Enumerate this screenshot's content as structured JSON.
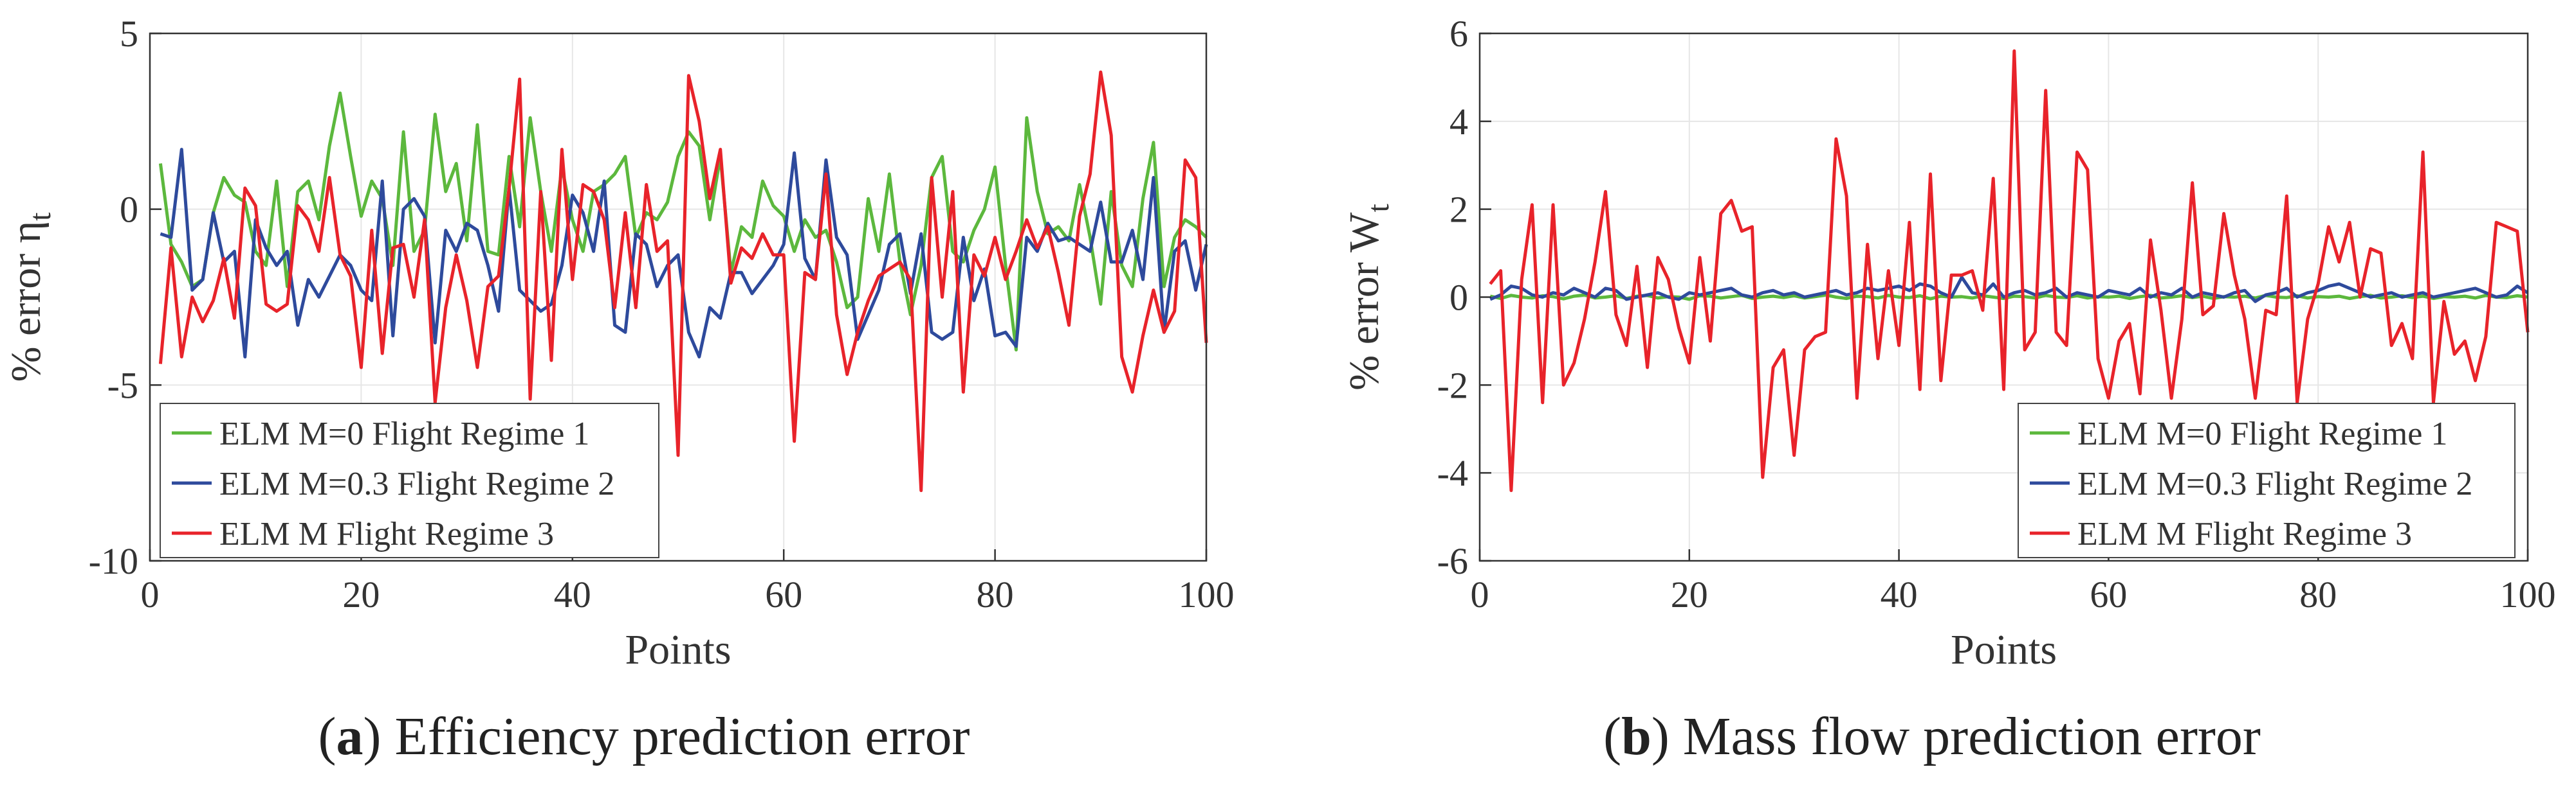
{
  "figure": {
    "captions": [
      {
        "letter": "a",
        "text": "Efficiency prediction error"
      },
      {
        "letter": "b",
        "text": "Mass flow prediction error"
      }
    ]
  },
  "chart_data": [
    {
      "type": "line",
      "panel": "a",
      "title": "",
      "xlabel": "Points",
      "ylabel": "% error η",
      "ylabel_subscript": "t",
      "xlim": [
        0,
        100
      ],
      "ylim": [
        -10,
        5
      ],
      "xticks": [
        0,
        20,
        40,
        60,
        80,
        100
      ],
      "yticks": [
        -10,
        -5,
        0,
        5
      ],
      "grid": true,
      "legend_position": "bottom-left",
      "x": [
        1,
        2,
        3,
        4,
        5,
        6,
        7,
        8,
        9,
        10,
        11,
        12,
        13,
        14,
        15,
        16,
        17,
        18,
        19,
        20,
        21,
        22,
        23,
        24,
        25,
        26,
        27,
        28,
        29,
        30,
        31,
        32,
        33,
        34,
        35,
        36,
        37,
        38,
        39,
        40,
        41,
        42,
        43,
        44,
        45,
        46,
        47,
        48,
        49,
        50,
        51,
        52,
        53,
        54,
        55,
        56,
        57,
        58,
        59,
        60,
        61,
        62,
        63,
        64,
        65,
        66,
        67,
        68,
        69,
        70,
        71,
        72,
        73,
        74,
        75,
        76,
        77,
        78,
        79,
        80,
        81,
        82,
        83,
        84,
        85,
        86,
        87,
        88,
        89,
        90,
        91,
        92,
        93,
        94,
        95,
        96,
        97,
        98,
        99,
        100
      ],
      "series": [
        {
          "name": "ELM M=0 Flight Regime 1",
          "color": "#5cb83d",
          "values": [
            1.3,
            -1.0,
            -1.5,
            -2.2,
            -2.0,
            -0.1,
            0.9,
            0.4,
            0.2,
            -1.2,
            -1.6,
            0.8,
            -2.2,
            0.5,
            0.8,
            -0.3,
            1.8,
            3.3,
            1.5,
            -0.2,
            0.8,
            0.3,
            -1.6,
            2.2,
            -1.2,
            -0.6,
            2.7,
            0.5,
            1.3,
            -0.9,
            2.4,
            -1.2,
            -1.3,
            1.5,
            -0.5,
            2.6,
            0.5,
            -1.2,
            1.2,
            -0.3,
            -1.2,
            0.5,
            0.7,
            1.0,
            1.5,
            -0.8,
            -0.1,
            -0.3,
            0.2,
            1.5,
            2.2,
            1.8,
            -0.3,
            1.5,
            -1.8,
            -0.5,
            -0.8,
            0.8,
            0.1,
            -0.2,
            -1.2,
            -0.3,
            -0.8,
            -0.6,
            -1.5,
            -2.8,
            -2.5,
            0.3,
            -1.2,
            1.0,
            -1.5,
            -3.0,
            -1.6,
            0.9,
            1.5,
            -1.2,
            -1.5,
            -0.6,
            0.0,
            1.2,
            -1.6,
            -4.0,
            2.6,
            0.5,
            -0.7,
            -0.5,
            -0.9,
            0.7,
            -0.8,
            -2.7,
            0.5,
            -1.6,
            -2.2,
            0.3,
            1.9,
            -2.2,
            -0.8,
            -0.3,
            -0.5,
            -0.8
          ]
        },
        {
          "name": "ELM M=0.3 Flight Regime 2",
          "color": "#2e4a9c",
          "values": [
            -0.7,
            -0.8,
            1.7,
            -2.3,
            -2.0,
            -0.1,
            -1.5,
            -1.2,
            -4.2,
            -0.3,
            -1.1,
            -1.6,
            -1.2,
            -3.3,
            -2.0,
            -2.5,
            -1.9,
            -1.3,
            -1.6,
            -2.3,
            -2.6,
            0.8,
            -3.6,
            0.0,
            0.3,
            -0.2,
            -3.8,
            -0.6,
            -1.2,
            -0.4,
            -0.6,
            -1.6,
            -2.9,
            0.6,
            -2.3,
            -2.6,
            -2.9,
            -2.7,
            -1.6,
            0.4,
            -0.1,
            -1.2,
            0.8,
            -3.3,
            -3.5,
            -0.7,
            -1.0,
            -2.2,
            -1.6,
            -1.3,
            -3.5,
            -4.2,
            -2.8,
            -3.1,
            -1.8,
            -1.8,
            -2.4,
            -2.0,
            -1.6,
            -1.0,
            1.6,
            -1.4,
            -2.0,
            1.4,
            -0.8,
            -1.3,
            -3.7,
            -3.0,
            -2.3,
            -1.0,
            -0.7,
            -2.4,
            -0.7,
            -3.5,
            -3.7,
            -3.5,
            -0.8,
            -2.6,
            -1.7,
            -3.6,
            -3.5,
            -3.9,
            -0.8,
            -1.2,
            -0.4,
            -0.9,
            -0.8,
            -1.0,
            -1.2,
            0.2,
            -1.5,
            -1.5,
            -0.6,
            -2.0,
            0.9,
            -3.5,
            -1.2,
            -0.9,
            -2.3,
            -1.0
          ]
        },
        {
          "name": "ELM M Flight Regime 3",
          "color": "#e8232a",
          "values": [
            -4.4,
            -1.1,
            -4.2,
            -2.5,
            -3.2,
            -2.6,
            -1.4,
            -3.1,
            0.6,
            0.1,
            -2.7,
            -2.9,
            -2.7,
            0.1,
            -0.3,
            -1.2,
            0.9,
            -1.3,
            -1.9,
            -4.5,
            -0.6,
            -4.1,
            -1.1,
            -1.0,
            -2.5,
            -0.3,
            -5.5,
            -2.8,
            -1.3,
            -2.6,
            -4.5,
            -2.2,
            -1.9,
            0.6,
            3.7,
            -5.4,
            0.5,
            -4.3,
            1.7,
            -2.0,
            0.7,
            0.5,
            -0.3,
            -2.8,
            -0.1,
            -2.8,
            0.7,
            -1.2,
            -0.9,
            -7.0,
            3.8,
            2.5,
            0.3,
            1.7,
            -2.1,
            -1.1,
            -1.4,
            -0.7,
            -1.3,
            -1.3,
            -6.6,
            -1.8,
            -2.0,
            1.0,
            -3.0,
            -4.7,
            -3.5,
            -2.6,
            -1.9,
            -1.7,
            -1.5,
            -2.0,
            -8.0,
            0.9,
            -2.5,
            0.5,
            -5.2,
            -1.3,
            -1.9,
            -0.8,
            -2.0,
            -1.2,
            -0.3,
            -1.1,
            -0.5,
            -1.8,
            -3.3,
            -0.2,
            1.0,
            3.9,
            2.1,
            -4.2,
            -5.2,
            -3.6,
            -2.3,
            -3.5,
            -2.9,
            1.4,
            0.9,
            -3.8
          ]
        }
      ]
    },
    {
      "type": "line",
      "panel": "b",
      "title": "",
      "xlabel": "Points",
      "ylabel": "% error W",
      "ylabel_subscript": "t",
      "xlim": [
        0,
        100
      ],
      "ylim": [
        -6,
        6
      ],
      "xticks": [
        0,
        20,
        40,
        60,
        80,
        100
      ],
      "yticks": [
        -6,
        -4,
        -2,
        0,
        2,
        4,
        6
      ],
      "grid": true,
      "legend_position": "bottom-right",
      "x": [
        1,
        2,
        3,
        4,
        5,
        6,
        7,
        8,
        9,
        10,
        11,
        12,
        13,
        14,
        15,
        16,
        17,
        18,
        19,
        20,
        21,
        22,
        23,
        24,
        25,
        26,
        27,
        28,
        29,
        30,
        31,
        32,
        33,
        34,
        35,
        36,
        37,
        38,
        39,
        40,
        41,
        42,
        43,
        44,
        45,
        46,
        47,
        48,
        49,
        50,
        51,
        52,
        53,
        54,
        55,
        56,
        57,
        58,
        59,
        60,
        61,
        62,
        63,
        64,
        65,
        66,
        67,
        68,
        69,
        70,
        71,
        72,
        73,
        74,
        75,
        76,
        77,
        78,
        79,
        80,
        81,
        82,
        83,
        84,
        85,
        86,
        87,
        88,
        89,
        90,
        91,
        92,
        93,
        94,
        95,
        96,
        97,
        98,
        99,
        100
      ],
      "series": [
        {
          "name": "ELM M=0 Flight Regime 1",
          "color": "#5cb83d",
          "values": [
            0.02,
            -0.03,
            0.04,
            0.0,
            -0.02,
            0.03,
            0.01,
            -0.04,
            0.02,
            0.05,
            -0.02,
            0.0,
            0.03,
            -0.03,
            0.02,
            0.04,
            -0.02,
            0.01,
            0.0,
            -0.05,
            0.03,
            0.02,
            -0.02,
            0.01,
            0.04,
            -0.03,
            0.0,
            0.02,
            -0.01,
            0.03,
            -0.02,
            0.01,
            0.05,
            0.0,
            -0.03,
            0.02,
            0.01,
            -0.02,
            0.04,
            0.0,
            -0.01,
            0.03,
            -0.04,
            0.02,
            0.0,
            0.01,
            -0.02,
            0.03,
            0.0,
            -0.03,
            0.02,
            0.01,
            -0.02,
            0.04,
            0.0,
            -0.01,
            0.03,
            -0.02,
            0.01,
            0.0,
            0.02,
            -0.03,
            0.01,
            0.04,
            -0.02,
            0.0,
            0.03,
            -0.01,
            0.02,
            -0.03,
            0.01,
            0.0,
            0.02,
            -0.02,
            0.04,
            0.0,
            -0.01,
            0.03,
            -0.02,
            0.01,
            0.0,
            0.02,
            -0.03,
            0.01,
            0.04,
            -0.02,
            0.0,
            0.03,
            -0.01,
            0.02,
            -0.03,
            0.01,
            0.0,
            0.02,
            -0.02,
            0.04,
            0.0,
            -0.01,
            0.03,
            0.0
          ]
        },
        {
          "name": "ELM M=0.3 Flight Regime 2",
          "color": "#2e4a9c",
          "values": [
            -0.05,
            0.05,
            0.25,
            0.2,
            0.05,
            0.0,
            0.1,
            0.05,
            0.2,
            0.1,
            0.0,
            0.2,
            0.15,
            -0.05,
            0.0,
            0.05,
            0.1,
            0.0,
            -0.05,
            0.1,
            0.05,
            0.1,
            0.15,
            0.2,
            0.05,
            0.0,
            0.1,
            0.15,
            0.05,
            0.1,
            0.0,
            0.05,
            0.1,
            0.15,
            0.05,
            0.1,
            0.2,
            0.15,
            0.2,
            0.25,
            0.15,
            0.3,
            0.25,
            0.1,
            0.0,
            0.45,
            0.1,
            0.05,
            0.3,
            0.0,
            0.1,
            0.15,
            0.05,
            0.1,
            0.2,
            0.0,
            0.1,
            0.05,
            0.0,
            0.15,
            0.1,
            0.05,
            0.2,
            0.0,
            0.1,
            0.05,
            0.2,
            0.0,
            0.1,
            0.05,
            0.0,
            0.1,
            0.15,
            -0.1,
            0.05,
            0.1,
            0.2,
            0.0,
            0.1,
            0.15,
            0.25,
            0.3,
            0.2,
            0.1,
            0.0,
            0.05,
            0.1,
            0.0,
            0.05,
            0.1,
            0.0,
            0.05,
            0.1,
            0.15,
            0.2,
            0.1,
            0.0,
            0.05,
            0.25,
            0.1
          ]
        },
        {
          "name": "ELM M Flight Regime 3",
          "color": "#e8232a",
          "values": [
            0.3,
            0.6,
            -4.4,
            0.4,
            2.1,
            -2.4,
            2.1,
            -2.0,
            -1.5,
            -0.5,
            0.8,
            2.4,
            -0.4,
            -1.1,
            0.7,
            -1.6,
            0.9,
            0.4,
            -0.7,
            -1.5,
            0.9,
            -1.0,
            1.9,
            2.2,
            1.5,
            1.6,
            -4.1,
            -1.6,
            -1.2,
            -3.6,
            -1.2,
            -0.9,
            -0.8,
            3.6,
            2.3,
            -2.3,
            1.2,
            -1.4,
            0.6,
            -1.1,
            1.7,
            -2.1,
            2.8,
            -1.9,
            0.5,
            0.5,
            0.6,
            -0.3,
            2.7,
            -2.1,
            5.6,
            -1.2,
            -0.8,
            4.7,
            -0.8,
            -1.1,
            3.3,
            2.9,
            -1.4,
            -2.3,
            -1.0,
            -0.6,
            -2.2,
            1.3,
            -0.3,
            -2.3,
            -0.5,
            2.6,
            -0.4,
            -0.2,
            1.9,
            0.5,
            -0.5,
            -2.3,
            -0.3,
            -0.4,
            2.3,
            -2.4,
            -0.5,
            0.3,
            1.6,
            0.8,
            1.7,
            0.0,
            1.1,
            1.0,
            -1.1,
            -0.6,
            -1.4,
            3.3,
            -2.4,
            -0.1,
            -1.3,
            -1.0,
            -1.9,
            -0.9,
            1.7,
            1.6,
            1.5,
            -0.8
          ]
        }
      ]
    }
  ]
}
